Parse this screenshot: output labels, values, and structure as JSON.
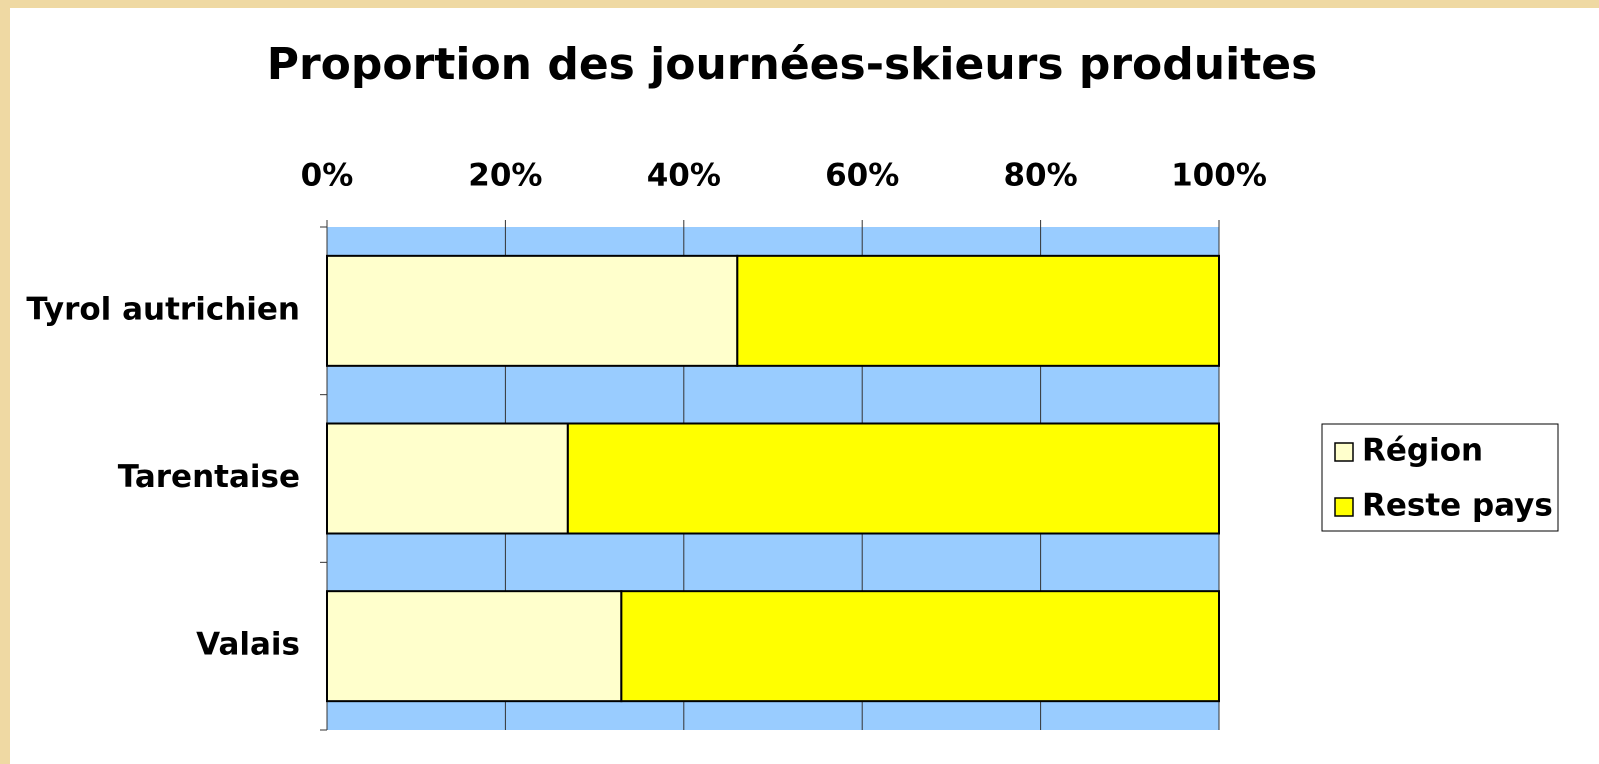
{
  "chart_data": {
    "type": "stacked-bar-horizontal",
    "title": "Proportion des journées-skieurs produites",
    "categories": [
      "Tyrol autrichien",
      "Tarentaise",
      "Valais"
    ],
    "series": [
      {
        "name": "Région",
        "color": "#ffffcc",
        "values": [
          46,
          27,
          33
        ]
      },
      {
        "name": "Reste pays",
        "color": "#ffff00",
        "values": [
          54,
          73,
          67
        ]
      }
    ],
    "xlim": [
      0,
      100
    ],
    "xticks": [
      {
        "value": 0,
        "label": "0%"
      },
      {
        "value": 20,
        "label": "20%"
      },
      {
        "value": 40,
        "label": "40%"
      },
      {
        "value": 60,
        "label": "60%"
      },
      {
        "value": 80,
        "label": "80%"
      },
      {
        "value": 100,
        "label": "100%"
      }
    ],
    "grid": true,
    "plot_background": "#99ccff",
    "legend": "right"
  }
}
